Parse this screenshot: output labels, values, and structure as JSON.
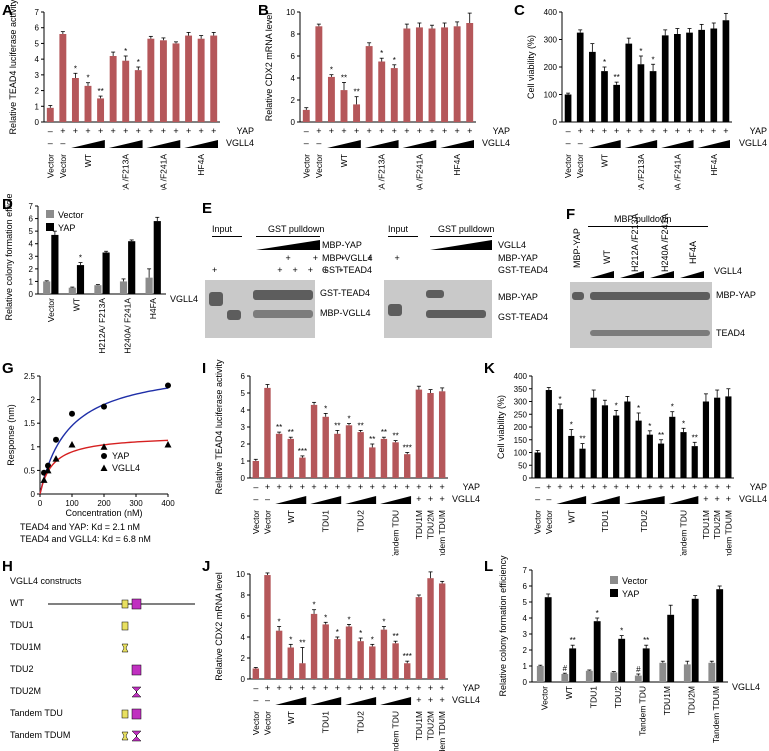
{
  "panel_labels": [
    "A",
    "B",
    "C",
    "D",
    "E",
    "F",
    "G",
    "H",
    "I",
    "J",
    "K",
    "L"
  ],
  "row_labels": {
    "yap": "YAP",
    "vgll4": "VGLL4"
  },
  "chart_data": [
    {
      "id": "A",
      "type": "bar",
      "ylabel": "Relative TEAD4 luciferase activity",
      "ylim": [
        0,
        7
      ],
      "ticks": [
        0,
        1,
        2,
        3,
        4,
        5,
        6,
        7
      ],
      "bar_color": "#b5575a",
      "values": [
        0.9,
        5.6,
        2.8,
        2.3,
        1.5,
        4.2,
        3.9,
        3.3,
        5.3,
        5.2,
        5.0,
        5.5,
        5.3,
        5.5
      ],
      "errors": [
        0.15,
        0.15,
        0.3,
        0.2,
        0.15,
        0.25,
        0.3,
        0.2,
        0.15,
        0.15,
        0.1,
        0.2,
        0.2,
        0.2
      ],
      "stars": [
        "",
        "",
        "*",
        "*",
        "**",
        "",
        "*",
        "*",
        "",
        "",
        "",
        "",
        "",
        ""
      ],
      "yap": [
        "–",
        "+",
        "+",
        "+",
        "+",
        "+",
        "+",
        "+",
        "+",
        "+",
        "+",
        "+",
        "+",
        "+"
      ],
      "vgll4": [
        "–",
        "–",
        "ramp",
        "ramp",
        "ramp",
        "ramp",
        "ramp",
        "ramp",
        "ramp",
        "ramp",
        "ramp",
        "ramp",
        "ramp",
        "ramp"
      ],
      "groups": [
        {
          "label": "Vector",
          "start": 0,
          "end": 0
        },
        {
          "label": "Vector",
          "start": 1,
          "end": 1
        },
        {
          "label": "WT",
          "start": 2,
          "end": 4
        },
        {
          "label": "H212A /F213A",
          "start": 5,
          "end": 7
        },
        {
          "label": "H240A /F241A",
          "start": 8,
          "end": 10
        },
        {
          "label": "HF4A",
          "start": 11,
          "end": 13
        }
      ]
    },
    {
      "id": "B",
      "type": "bar",
      "ylabel": "Relative CDX2 mRNA level",
      "ylim": [
        0,
        10
      ],
      "ticks": [
        0,
        2,
        4,
        6,
        8,
        10
      ],
      "bar_color": "#b5575a",
      "values": [
        1.1,
        8.7,
        4.1,
        2.9,
        1.6,
        6.9,
        5.5,
        4.9,
        8.5,
        8.6,
        8.5,
        8.6,
        8.7,
        9.0
      ],
      "errors": [
        0.2,
        0.2,
        0.2,
        0.7,
        0.7,
        0.3,
        0.3,
        0.3,
        0.4,
        0.4,
        0.3,
        0.4,
        0.4,
        0.9
      ],
      "stars": [
        "",
        "",
        "*",
        "**",
        "**",
        "",
        "*",
        "*",
        "",
        "",
        "",
        "",
        "",
        ""
      ],
      "yap": [
        "–",
        "+",
        "+",
        "+",
        "+",
        "+",
        "+",
        "+",
        "+",
        "+",
        "+",
        "+",
        "+",
        "+"
      ],
      "vgll4": [
        "–",
        "–",
        "ramp",
        "ramp",
        "ramp",
        "ramp",
        "ramp",
        "ramp",
        "ramp",
        "ramp",
        "ramp",
        "ramp",
        "ramp",
        "ramp"
      ],
      "groups": [
        {
          "label": "Vector",
          "start": 0,
          "end": 0
        },
        {
          "label": "Vector",
          "start": 1,
          "end": 1
        },
        {
          "label": "WT",
          "start": 2,
          "end": 4
        },
        {
          "label": "H212A /F213A",
          "start": 5,
          "end": 7
        },
        {
          "label": "H240A /F241A",
          "start": 8,
          "end": 10
        },
        {
          "label": "HF4A",
          "start": 11,
          "end": 13
        }
      ]
    },
    {
      "id": "C",
      "type": "bar",
      "ylabel": "Cell viability (%)",
      "ylim": [
        0,
        400
      ],
      "ticks": [
        0,
        100,
        200,
        300,
        400
      ],
      "bar_color": "#000000",
      "values": [
        100,
        325,
        255,
        185,
        135,
        285,
        210,
        185,
        315,
        320,
        325,
        335,
        340,
        370
      ],
      "errors": [
        5,
        10,
        30,
        15,
        10,
        20,
        30,
        25,
        20,
        20,
        15,
        20,
        20,
        25
      ],
      "stars": [
        "",
        "",
        "",
        "*",
        "**",
        "",
        "*",
        "*",
        "",
        "",
        "",
        "",
        "",
        ""
      ],
      "yap": [
        "–",
        "+",
        "+",
        "+",
        "+",
        "+",
        "+",
        "+",
        "+",
        "+",
        "+",
        "+",
        "+",
        "+"
      ],
      "vgll4": [
        "–",
        "–",
        "ramp",
        "ramp",
        "ramp",
        "ramp",
        "ramp",
        "ramp",
        "ramp",
        "ramp",
        "ramp",
        "ramp",
        "ramp",
        "ramp"
      ],
      "groups": [
        {
          "label": "Vector",
          "start": 0,
          "end": 0
        },
        {
          "label": "Vector",
          "start": 1,
          "end": 1
        },
        {
          "label": "WT",
          "start": 2,
          "end": 4
        },
        {
          "label": "H212A /F213A",
          "start": 5,
          "end": 7
        },
        {
          "label": "H240A /F241A",
          "start": 8,
          "end": 10
        },
        {
          "label": "HF4A",
          "start": 11,
          "end": 13
        }
      ]
    },
    {
      "id": "D",
      "type": "bar",
      "ylabel": "Relative colony formation efficiency",
      "ylim": [
        0,
        7
      ],
      "ticks": [
        0,
        1,
        2,
        3,
        4,
        5,
        6,
        7
      ],
      "categories": [
        "Vector",
        "WT",
        "H212A/ F213A",
        "H240A/ F241A",
        "H4FA"
      ],
      "series": [
        {
          "name": "Vector",
          "color": "#8c8c8c",
          "values": [
            1.0,
            0.5,
            0.7,
            1.0,
            1.3
          ],
          "errors": [
            0.05,
            0.05,
            0.05,
            0.2,
            0.7
          ]
        },
        {
          "name": "YAP",
          "color": "#000000",
          "values": [
            4.7,
            2.3,
            3.3,
            4.2,
            5.8
          ],
          "errors": [
            0.3,
            0.2,
            0.1,
            0.1,
            0.3
          ]
        }
      ],
      "stars": [
        "",
        "*",
        "",
        "",
        ""
      ],
      "row_label": "VGLL4"
    },
    {
      "id": "G",
      "type": "scatter",
      "ylabel": "Response (nm)",
      "xlabel": "Concentration (nM)",
      "xlim": [
        0,
        400
      ],
      "ylim": [
        0,
        2.5
      ],
      "xticks": [
        0,
        100,
        200,
        300,
        400
      ],
      "yticks": [
        0,
        0.5,
        1,
        1.5,
        2,
        2.5
      ],
      "series": [
        {
          "name": "YAP",
          "marker": "circle",
          "color": "#1f2fa8",
          "x": [
            12.5,
            25,
            50,
            100,
            200,
            400
          ],
          "y": [
            0.45,
            0.6,
            1.15,
            1.7,
            1.85,
            2.3
          ]
        },
        {
          "name": "VGLL4",
          "marker": "triangle",
          "color": "#d62020",
          "x": [
            12.5,
            25,
            50,
            100,
            200,
            400
          ],
          "y": [
            0.3,
            0.5,
            0.75,
            1.05,
            1.0,
            1.05
          ]
        }
      ],
      "notes": [
        "TEAD4 and YAP: Kd = 2.1 nM",
        "TEAD4 and VGLL4: Kd = 6.8 nM"
      ]
    },
    {
      "id": "I",
      "type": "bar",
      "ylabel": "Relative TEAD4 luciferase activity",
      "ylim": [
        0,
        6
      ],
      "ticks": [
        0,
        1,
        2,
        3,
        4,
        5,
        6
      ],
      "bar_color": "#b5575a",
      "values": [
        1.0,
        5.3,
        2.6,
        2.3,
        1.2,
        4.3,
        3.6,
        2.6,
        3.1,
        2.7,
        1.8,
        2.3,
        2.1,
        1.4,
        5.2,
        5.0,
        5.1
      ],
      "errors": [
        0.1,
        0.2,
        0.1,
        0.1,
        0.1,
        0.15,
        0.2,
        0.2,
        0.1,
        0.1,
        0.2,
        0.1,
        0.1,
        0.1,
        0.2,
        0.2,
        0.2
      ],
      "stars": [
        "",
        "",
        "**",
        "**",
        "***",
        "",
        "*",
        "**",
        "*",
        "**",
        "**",
        "**",
        "**",
        "***",
        "",
        "",
        ""
      ],
      "yap": [
        "–",
        "+",
        "+",
        "+",
        "+",
        "+",
        "+",
        "+",
        "+",
        "+",
        "+",
        "+",
        "+",
        "+",
        "+",
        "+",
        "+"
      ],
      "vgll4": [
        "–",
        "–",
        "ramp",
        "ramp",
        "ramp",
        "ramp",
        "ramp",
        "ramp",
        "ramp",
        "ramp",
        "ramp",
        "ramp",
        "ramp",
        "ramp",
        "+",
        "+",
        "+"
      ],
      "groups": [
        {
          "label": "Vector",
          "start": 0,
          "end": 0
        },
        {
          "label": "Vector",
          "start": 1,
          "end": 1
        },
        {
          "label": "WT",
          "start": 2,
          "end": 4
        },
        {
          "label": "TDU1",
          "start": 5,
          "end": 7
        },
        {
          "label": "TDU2",
          "start": 8,
          "end": 10
        },
        {
          "label": "Tandem TDU",
          "start": 11,
          "end": 13
        },
        {
          "label": "TDU1M",
          "start": 14,
          "end": 14
        },
        {
          "label": "TDU2M",
          "start": 15,
          "end": 15
        },
        {
          "label": "Tandem TDUM",
          "start": 16,
          "end": 16
        }
      ]
    },
    {
      "id": "J",
      "type": "bar",
      "ylabel": "Relative CDX2 mRNA level",
      "ylim": [
        0,
        10
      ],
      "ticks": [
        0,
        2,
        4,
        6,
        8,
        10
      ],
      "bar_color": "#b5575a",
      "values": [
        1.0,
        9.9,
        4.6,
        3.0,
        1.5,
        6.2,
        5.2,
        3.8,
        5.0,
        3.6,
        3.1,
        4.7,
        3.4,
        1.5,
        7.8,
        9.6,
        9.1
      ],
      "errors": [
        0.1,
        0.2,
        0.4,
        0.3,
        1.5,
        0.4,
        0.2,
        0.2,
        0.2,
        0.3,
        0.2,
        0.3,
        0.2,
        0.2,
        0.2,
        0.6,
        0.2
      ],
      "stars": [
        "",
        "",
        "*",
        "*",
        "**",
        "*",
        "*",
        "*",
        "*",
        "*",
        "*",
        "*",
        "**",
        "***",
        "",
        "",
        ""
      ],
      "yap": [
        "–",
        "+",
        "+",
        "+",
        "+",
        "+",
        "+",
        "+",
        "+",
        "+",
        "+",
        "+",
        "+",
        "+",
        "+",
        "+",
        "+"
      ],
      "vgll4": [
        "–",
        "–",
        "ramp",
        "ramp",
        "ramp",
        "ramp",
        "ramp",
        "ramp",
        "ramp",
        "ramp",
        "ramp",
        "ramp",
        "ramp",
        "ramp",
        "+",
        "+",
        "+"
      ],
      "groups": [
        {
          "label": "Vector",
          "start": 0,
          "end": 0
        },
        {
          "label": "Vector",
          "start": 1,
          "end": 1
        },
        {
          "label": "WT",
          "start": 2,
          "end": 4
        },
        {
          "label": "TDU1",
          "start": 5,
          "end": 7
        },
        {
          "label": "TDU2",
          "start": 8,
          "end": 10
        },
        {
          "label": "Tandem TDU",
          "start": 11,
          "end": 13
        },
        {
          "label": "TDU1M",
          "start": 14,
          "end": 14
        },
        {
          "label": "TDU2M",
          "start": 15,
          "end": 15
        },
        {
          "label": "Tandem TDUM",
          "start": 16,
          "end": 16
        }
      ]
    },
    {
      "id": "K",
      "type": "bar",
      "ylabel": "Cell viability (%)",
      "ylim": [
        0,
        400
      ],
      "ticks": [
        0,
        50,
        100,
        150,
        200,
        250,
        300,
        350,
        400
      ],
      "bar_color": "#000000",
      "values": [
        100,
        345,
        270,
        165,
        115,
        315,
        285,
        245,
        300,
        225,
        170,
        135,
        240,
        180,
        125,
        300,
        315,
        320
      ],
      "errors": [
        8,
        10,
        20,
        25,
        20,
        30,
        20,
        20,
        20,
        30,
        15,
        15,
        20,
        15,
        15,
        30,
        30,
        30
      ],
      "stars": [
        "",
        "",
        "*",
        "*",
        "**",
        "",
        "",
        "*",
        "",
        "*",
        "*",
        "**",
        "*",
        "*",
        "**",
        "",
        "",
        ""
      ],
      "yap": [
        "–",
        "+",
        "+",
        "+",
        "+",
        "+",
        "+",
        "+",
        "+",
        "+",
        "+",
        "+",
        "+",
        "+",
        "+",
        "+",
        "+",
        "+"
      ],
      "vgll4": [
        "–",
        "–",
        "ramp",
        "ramp",
        "ramp",
        "ramp",
        "ramp",
        "ramp",
        "ramp",
        "ramp",
        "ramp",
        "ramp",
        "ramp",
        "ramp",
        "ramp",
        "+",
        "+",
        "+"
      ],
      "groups": [
        {
          "label": "Vector",
          "start": 0,
          "end": 0
        },
        {
          "label": "Vector",
          "start": 1,
          "end": 1
        },
        {
          "label": "WT",
          "start": 2,
          "end": 4
        },
        {
          "label": "TDU1",
          "start": 5,
          "end": 7
        },
        {
          "label": "TDU2",
          "start": 8,
          "end": 11
        },
        {
          "label": "Tandem TDU",
          "start": 12,
          "end": 14
        },
        {
          "label": "TDU1M",
          "start": 15,
          "end": 15
        },
        {
          "label": "TDU2M",
          "start": 16,
          "end": 16
        },
        {
          "label": "Tandem TDUM",
          "start": 17,
          "end": 17
        }
      ]
    },
    {
      "id": "L",
      "type": "bar",
      "ylabel": "Relative colony formation efficiency",
      "ylim": [
        0,
        7
      ],
      "ticks": [
        0,
        1,
        2,
        3,
        4,
        5,
        6,
        7
      ],
      "categories": [
        "Vector",
        "WT",
        "TDU1",
        "TDU2",
        "Tandem TDU",
        "TDU1M",
        "TDU2M",
        "Tandem TDUM"
      ],
      "series": [
        {
          "name": "Vector",
          "color": "#8c8c8c",
          "values": [
            1.0,
            0.5,
            0.7,
            0.6,
            0.4,
            1.2,
            1.1,
            1.2
          ],
          "errors": [
            0.05,
            0.05,
            0.05,
            0.05,
            0.1,
            0.1,
            0.2,
            0.1
          ]
        },
        {
          "name": "YAP",
          "color": "#000000",
          "values": [
            5.3,
            2.1,
            3.8,
            2.7,
            2.1,
            4.2,
            5.2,
            5.8
          ],
          "errors": [
            0.2,
            0.2,
            0.2,
            0.2,
            0.2,
            0.6,
            0.2,
            0.2
          ]
        }
      ],
      "stars_vector": [
        "",
        "#",
        "",
        "",
        "#",
        "",
        "",
        ""
      ],
      "stars_yap": [
        "",
        "**",
        "*",
        "*",
        "**",
        "",
        "",
        ""
      ],
      "row_label": "VGLL4"
    }
  ],
  "blot_E": {
    "input": "Input",
    "pulldown": "GST pulldown",
    "left_rows": [
      {
        "label": "MBP-YAP",
        "values": [
          "",
          "",
          "ramp"
        ]
      },
      {
        "label": "MBP-VGLL4",
        "values": [
          "",
          "+",
          "+",
          "+",
          "+",
          "+",
          "+"
        ]
      },
      {
        "label": "GST-TEAD4",
        "values": [
          "+",
          "",
          "+",
          "+",
          "+",
          "+",
          "+"
        ]
      }
    ],
    "right_rows": [
      {
        "label": "VGLL4",
        "values": [
          "",
          "",
          "ramp"
        ]
      },
      {
        "label": "MBP-YAP",
        "values": [
          "",
          "+",
          "+",
          "+",
          "+",
          "+",
          "+"
        ]
      },
      {
        "label": "GST-TEAD4",
        "values": [
          "+",
          "",
          "+",
          "+",
          "+",
          "+",
          "+"
        ]
      }
    ],
    "left_bands": [
      "GST-TEAD4",
      "MBP-VGLL4"
    ],
    "right_bands": [
      "MBP-YAP",
      "GST-TEAD4"
    ]
  },
  "blot_F": {
    "pulldown": "MBP pulldown",
    "lanes": [
      "MBP-YAP",
      "WT",
      "H212A /F213A",
      "H240A /F241A",
      "HF4A"
    ],
    "row_label": "VGLL4",
    "bands": [
      "MBP-YAP",
      "TEAD4"
    ]
  },
  "constructs_H": {
    "title": "VGLL4 constructs",
    "items": [
      "WT",
      "TDU1",
      "TDU1M",
      "TDU2",
      "TDU2M",
      "Tandem TDU",
      "Tandem TDUM"
    ]
  }
}
